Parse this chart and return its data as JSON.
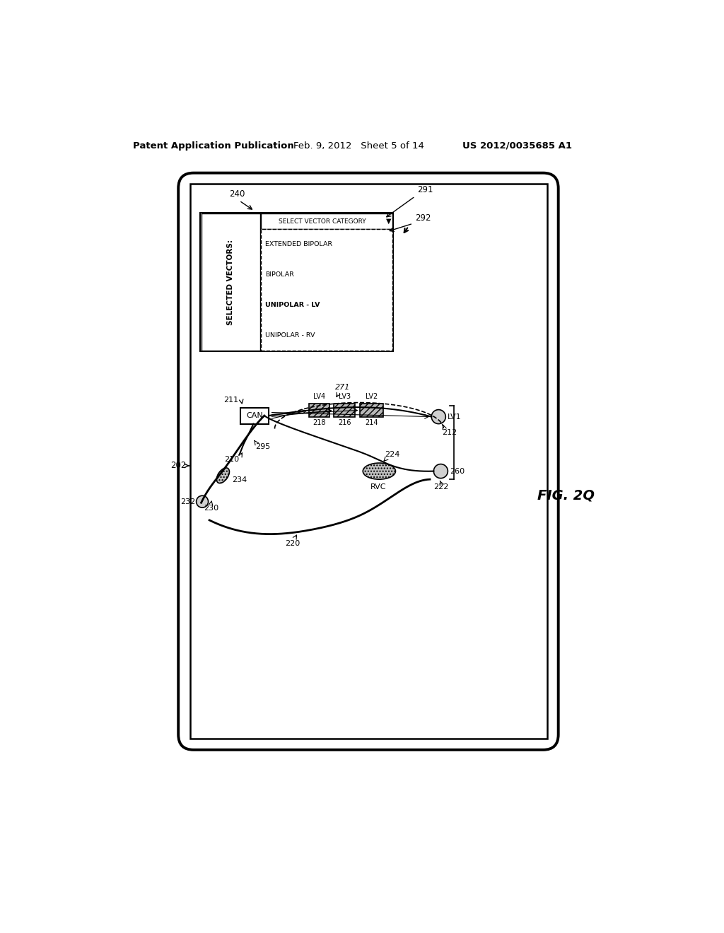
{
  "title_left": "Patent Application Publication",
  "title_mid": "Feb. 9, 2012   Sheet 5 of 14",
  "title_right": "US 2012/0035685 A1",
  "fig_label": "FIG. 2Q",
  "bg_color": "#ffffff",
  "label_202": "202",
  "label_240": "240",
  "label_211": "211",
  "label_210": "210",
  "label_212": "212",
  "label_214": "214",
  "label_216": "216",
  "label_218": "218",
  "label_220": "220",
  "label_222": "222",
  "label_224": "224",
  "label_230": "230",
  "label_232": "232",
  "label_234": "234",
  "label_260": "260",
  "label_271": "271",
  "label_291": "291",
  "label_292": "292",
  "label_295": "295",
  "label_LV1": "LV1",
  "label_LV2": "LV2",
  "label_LV3": "LV3",
  "label_LV4": "LV4",
  "label_RVC": "RVC",
  "label_CAN": "CAN",
  "selected_vectors_title": "SELECTED VECTORS:",
  "dropdown_label": "SELECT VECTOR CATEGORY",
  "dropdown_arrow": "▼",
  "dropdown_items": [
    "EXTENDED BIPOLAR",
    "BIPOLAR",
    "UNIPOLAR - LV",
    "UNIPOLAR - RV"
  ],
  "selected_item_index": 2
}
